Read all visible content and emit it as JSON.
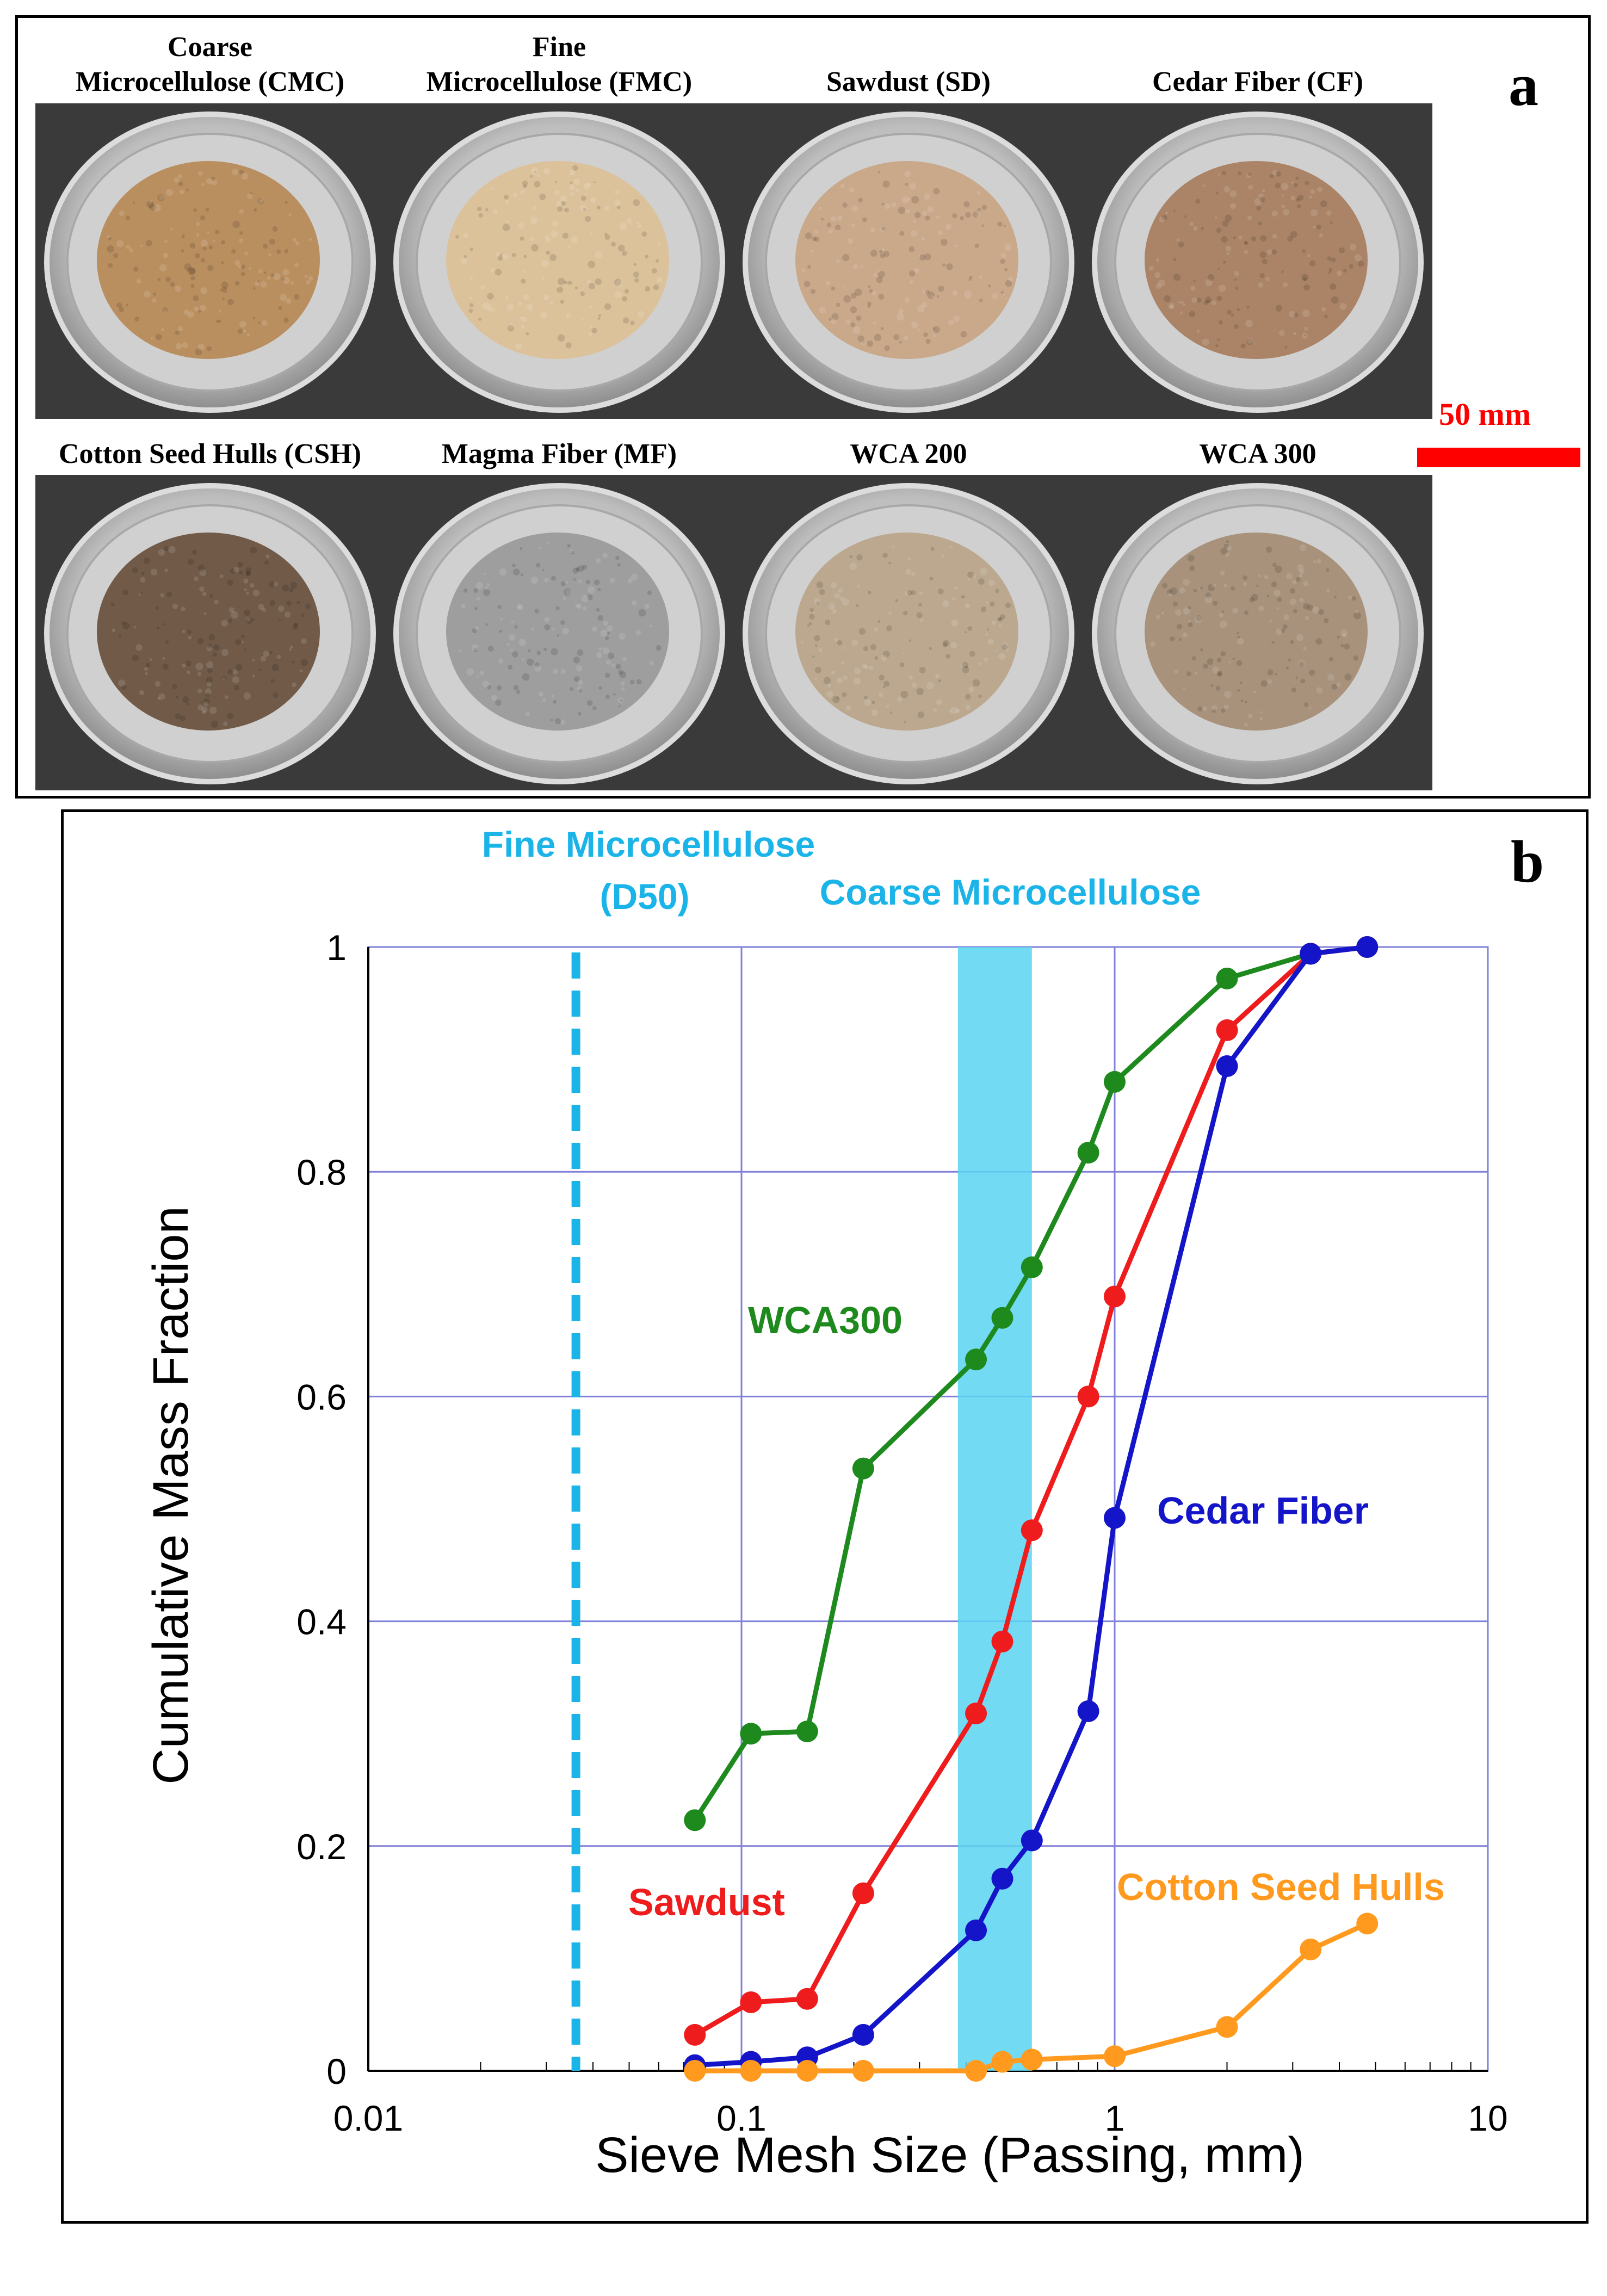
{
  "panel_a": {
    "letter": "a",
    "scale_bar_label": "50 mm",
    "samples": [
      {
        "label": "Coarse\nMicrocellulose (CMC)",
        "material": "coarse-microcellulose",
        "color": "#b88b58"
      },
      {
        "label": "Fine\nMicrocellulose (FMC)",
        "material": "fine-microcellulose",
        "color": "#dcc198"
      },
      {
        "label": "Sawdust (SD)",
        "material": "sawdust",
        "color": "#c9a586"
      },
      {
        "label": "Cedar Fiber (CF)",
        "material": "cedar-fiber",
        "color": "#a98061"
      },
      {
        "label": "Cotton Seed Hulls (CSH)",
        "material": "cotton-seed-hulls",
        "color": "#6b5440"
      },
      {
        "label": "Magma Fiber (MF)",
        "material": "magma-fiber",
        "color": "#9b9b9b"
      },
      {
        "label": "WCA 200",
        "material": "wca-200",
        "color": "#b9a58b"
      },
      {
        "label": "WCA 300",
        "material": "wca-300",
        "color": "#a58e76"
      }
    ]
  },
  "panel_b": {
    "letter": "b"
  },
  "chart_data": {
    "type": "scatter",
    "xscale": "log",
    "xlabel": "Sieve Mesh Size (Passing, mm)",
    "ylabel": "Cumulative Mass Fraction",
    "xlim": [
      0.01,
      10
    ],
    "ylim": [
      0,
      1
    ],
    "grid": true,
    "x_ticks": [
      0.01,
      0.1,
      1,
      10
    ],
    "x_tick_labels": [
      "0.01",
      "0.1",
      "1",
      "10"
    ],
    "y_ticks": [
      0,
      0.2,
      0.4,
      0.6,
      0.8,
      1
    ],
    "y_tick_labels": [
      "0",
      "0.2",
      "0.4",
      "0.6",
      "0.8",
      "1"
    ],
    "series": [
      {
        "name": "WCA300",
        "color": "#1e8a1e",
        "x": [
          0.075,
          0.106,
          0.15,
          0.212,
          0.425,
          0.5,
          0.6,
          0.85,
          1.0,
          2.0,
          3.35,
          4.75
        ],
        "y": [
          0.223,
          0.3,
          0.302,
          0.536,
          0.633,
          0.67,
          0.715,
          0.817,
          0.88,
          0.972,
          0.994,
          1.0
        ]
      },
      {
        "name": "Sawdust",
        "color": "#ee1c1c",
        "x": [
          0.075,
          0.106,
          0.15,
          0.212,
          0.425,
          0.5,
          0.6,
          0.85,
          1.0,
          2.0,
          3.35,
          4.75
        ],
        "y": [
          0.032,
          0.061,
          0.064,
          0.158,
          0.318,
          0.382,
          0.481,
          0.6,
          0.689,
          0.926,
          0.994,
          1.0
        ]
      },
      {
        "name": "Cedar Fiber",
        "color": "#1414c8",
        "x": [
          0.075,
          0.106,
          0.15,
          0.212,
          0.425,
          0.5,
          0.6,
          0.85,
          1.0,
          2.0,
          3.35,
          4.75
        ],
        "y": [
          0.005,
          0.008,
          0.012,
          0.032,
          0.125,
          0.171,
          0.205,
          0.32,
          0.492,
          0.894,
          0.994,
          1.0
        ]
      },
      {
        "name": "Cotton Seed Hulls",
        "color": "#ff9a1e",
        "x": [
          0.075,
          0.106,
          0.15,
          0.212,
          0.425,
          0.5,
          0.6,
          1.0,
          2.0,
          3.35,
          4.75
        ],
        "y": [
          0.0,
          0.0,
          0.0,
          0.0,
          0.0,
          0.008,
          0.01,
          0.013,
          0.039,
          0.108,
          0.131
        ]
      }
    ],
    "annotations": [
      {
        "text": "Fine Microcellulose",
        "color": "#1ab4e8"
      },
      {
        "text": "(D50)",
        "color": "#1ab4e8"
      },
      {
        "text": "Coarse Microcellulose",
        "color": "#1ab4e8"
      }
    ],
    "reference_line": {
      "name": "Fine Microcellulose (D50)",
      "x": 0.036,
      "style": "dashed",
      "color": "#1ab4e8"
    },
    "shaded_band": {
      "name": "Coarse Microcellulose",
      "x_range": [
        0.38,
        0.6
      ],
      "color": "#5bd3f2"
    }
  }
}
